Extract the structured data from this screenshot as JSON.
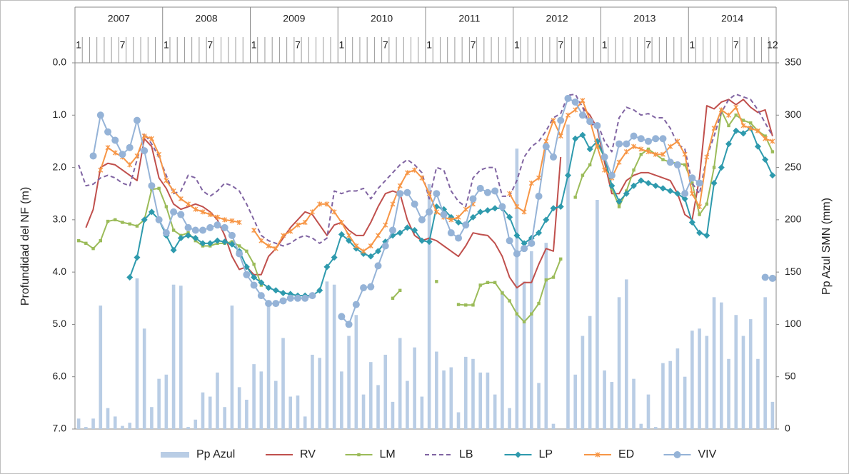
{
  "chart_data": {
    "type": "line",
    "y_title": "Profundidad del NF (m)",
    "y2_title": "Pp Azul SMN (mm)",
    "year_labels": [
      "2007",
      "2008",
      "2009",
      "2010",
      "2011",
      "2012",
      "2013",
      "2014"
    ],
    "categories": [
      "1",
      null,
      null,
      null,
      null,
      null,
      "7",
      null,
      null,
      null,
      null,
      null,
      "1",
      null,
      null,
      null,
      null,
      null,
      "7",
      null,
      null,
      null,
      null,
      null,
      "1",
      null,
      null,
      null,
      null,
      null,
      "7",
      null,
      null,
      null,
      null,
      null,
      "1",
      null,
      null,
      null,
      null,
      null,
      "7",
      null,
      null,
      null,
      null,
      null,
      "1",
      null,
      null,
      null,
      null,
      null,
      "7",
      null,
      null,
      null,
      null,
      null,
      "1",
      null,
      null,
      null,
      null,
      null,
      "7",
      null,
      null,
      null,
      null,
      null,
      "1",
      null,
      null,
      null,
      null,
      null,
      "7",
      null,
      null,
      null,
      null,
      null,
      "1",
      null,
      null,
      null,
      null,
      null,
      "7",
      null,
      null,
      null,
      null,
      "12"
    ],
    "ylim": [
      0,
      7
    ],
    "y_inverted": true,
    "yticks": [
      {
        "value": 0,
        "label": "0.0"
      },
      {
        "value": 1,
        "label": "1.0"
      },
      {
        "value": 2,
        "label": "2.0"
      },
      {
        "value": 3,
        "label": "3.0"
      },
      {
        "value": 4,
        "label": "4.0"
      },
      {
        "value": 5,
        "label": "5.0"
      },
      {
        "value": 6,
        "label": "6.0"
      },
      {
        "value": 7,
        "label": "7.0"
      }
    ],
    "y2lim": [
      0,
      350
    ],
    "y2ticks": [
      0,
      50,
      100,
      150,
      200,
      250,
      300,
      350
    ],
    "grid": false,
    "legend": "bottom",
    "series": [
      {
        "name": "Pp Azul",
        "type": "bar",
        "axis": "y2",
        "color": "#b9cde5",
        "values": [
          10,
          2,
          10,
          118,
          20,
          12,
          3,
          6,
          144,
          96,
          21,
          48,
          52,
          138,
          137,
          2,
          9,
          35,
          31,
          54,
          21,
          118,
          40,
          28,
          62,
          55,
          123,
          46,
          87,
          31,
          32,
          12,
          71,
          68,
          141,
          138,
          55,
          89,
          109,
          33,
          64,
          42,
          71,
          26,
          87,
          46,
          78,
          31,
          234,
          74,
          56,
          59,
          16,
          69,
          67,
          54,
          54,
          33,
          132,
          20,
          268,
          141,
          170,
          44,
          178,
          5,
          0,
          291,
          52,
          89,
          108,
          219,
          56,
          45,
          126,
          143,
          48,
          5,
          33,
          2,
          63,
          65,
          77,
          50,
          94,
          96,
          89,
          126,
          121,
          67,
          109,
          89,
          105,
          67,
          126,
          26
        ]
      },
      {
        "name": "RV",
        "type": "line",
        "color": "#c0504d",
        "values": [
          null,
          3.15,
          2.8,
          2.0,
          1.92,
          1.95,
          2.05,
          2.15,
          2.25,
          1.45,
          1.6,
          2.2,
          2.4,
          2.7,
          2.8,
          2.75,
          2.7,
          2.75,
          2.85,
          3.0,
          3.3,
          3.7,
          3.95,
          3.9,
          4.05,
          4.05,
          3.7,
          3.55,
          3.35,
          3.15,
          3.0,
          2.85,
          2.9,
          3.1,
          3.3,
          3.1,
          3.05,
          3.2,
          3.3,
          3.3,
          3.05,
          2.75,
          2.5,
          2.45,
          2.5,
          3.0,
          3.3,
          3.4,
          3.35,
          3.4,
          3.5,
          3.6,
          3.7,
          3.5,
          3.25,
          3.28,
          3.3,
          3.45,
          3.7,
          4.1,
          4.3,
          4.2,
          4.2,
          3.85,
          3.55,
          3.6,
          1.8,
          null,
          null,
          0.85,
          1.0,
          1.25,
          1.9,
          2.5,
          2.5,
          2.25,
          2.15,
          2.1,
          2.1,
          2.15,
          2.2,
          2.25,
          2.5,
          2.9,
          3.0,
          2.2,
          0.82,
          0.88,
          0.75,
          0.7,
          0.8,
          0.7,
          0.85,
          0.95,
          0.9,
          1.4
        ]
      },
      {
        "name": "LM",
        "type": "line",
        "marker": "square",
        "color": "#9bbb59",
        "values": [
          3.4,
          3.45,
          3.55,
          3.4,
          3.03,
          3.0,
          3.05,
          3.08,
          3.12,
          3.0,
          2.42,
          2.4,
          2.75,
          3.2,
          3.3,
          3.25,
          3.4,
          3.5,
          3.5,
          3.45,
          3.45,
          3.42,
          3.5,
          3.6,
          3.85,
          4.25,
          null,
          null,
          null,
          null,
          null,
          null,
          null,
          null,
          null,
          null,
          null,
          null,
          null,
          null,
          null,
          null,
          null,
          4.5,
          4.35,
          null,
          null,
          null,
          null,
          4.18,
          null,
          null,
          4.62,
          4.63,
          4.63,
          4.25,
          4.2,
          4.2,
          4.4,
          4.55,
          4.8,
          4.95,
          4.8,
          4.6,
          4.15,
          4.1,
          3.75,
          null,
          2.57,
          2.15,
          1.95,
          1.55,
          1.8,
          2.4,
          2.75,
          2.45,
          2.05,
          1.75,
          1.65,
          1.75,
          1.85,
          1.9,
          1.92,
          1.95,
          2.3,
          2.9,
          2.7,
          2.0,
          0.92,
          1.2,
          1.0,
          1.1,
          1.15,
          1.3,
          1.4,
          1.7
        ]
      },
      {
        "name": "LB",
        "type": "line",
        "dashed": true,
        "color": "#8064a2",
        "values": [
          1.95,
          2.35,
          2.32,
          2.2,
          2.15,
          2.2,
          2.3,
          2.35,
          1.85,
          1.35,
          1.55,
          1.8,
          2.15,
          2.5,
          2.45,
          2.15,
          2.2,
          2.45,
          2.55,
          2.45,
          2.3,
          2.35,
          2.45,
          2.7,
          3.0,
          3.3,
          3.4,
          3.45,
          3.5,
          3.45,
          3.35,
          3.3,
          3.35,
          3.45,
          3.35,
          2.45,
          2.5,
          2.45,
          2.45,
          2.4,
          2.6,
          2.4,
          2.25,
          2.1,
          1.95,
          1.85,
          1.95,
          2.1,
          2.6,
          2.0,
          2.05,
          2.45,
          2.65,
          2.75,
          2.2,
          2.05,
          2.0,
          2.0,
          2.55,
          2.55,
          2.25,
          1.8,
          1.6,
          1.5,
          1.3,
          1.05,
          0.97,
          0.62,
          0.6,
          0.85,
          1.2,
          1.15,
          1.5,
          1.7,
          1.05,
          0.85,
          0.9,
          1.0,
          0.97,
          1.05,
          1.05,
          1.25,
          1.55,
          1.65,
          2.3,
          2.5,
          1.8,
          1.4,
          0.95,
          0.7,
          0.6,
          0.65,
          0.7,
          0.9,
          1.15,
          1.4
        ]
      },
      {
        "name": "LP",
        "type": "line",
        "marker": "diamond",
        "color": "#2e9aad",
        "values": [
          null,
          null,
          null,
          null,
          null,
          null,
          null,
          4.1,
          3.72,
          3.0,
          2.85,
          3.0,
          3.3,
          3.58,
          3.35,
          3.3,
          3.35,
          3.45,
          3.45,
          3.4,
          3.42,
          3.47,
          3.6,
          3.9,
          4.1,
          4.2,
          4.3,
          4.35,
          4.4,
          4.42,
          4.45,
          4.45,
          4.45,
          4.35,
          3.9,
          3.72,
          3.28,
          3.4,
          3.55,
          3.65,
          3.7,
          3.6,
          3.42,
          3.3,
          3.25,
          3.15,
          3.2,
          3.4,
          3.42,
          2.75,
          2.8,
          2.95,
          3.05,
          3.1,
          2.95,
          2.85,
          2.82,
          2.78,
          2.78,
          2.95,
          3.3,
          3.45,
          3.35,
          3.25,
          3.0,
          2.78,
          2.75,
          2.15,
          1.45,
          1.38,
          1.65,
          1.5,
          1.8,
          2.35,
          2.65,
          2.5,
          2.35,
          2.25,
          2.3,
          2.35,
          2.4,
          2.45,
          2.5,
          2.6,
          3.05,
          3.25,
          3.3,
          2.3,
          2.0,
          1.55,
          1.3,
          1.35,
          1.25,
          1.6,
          1.85,
          2.15
        ]
      },
      {
        "name": "ED",
        "type": "line",
        "marker": "cross",
        "color": "#f79646",
        "values": [
          null,
          null,
          null,
          2.05,
          1.62,
          1.72,
          1.8,
          1.95,
          1.78,
          1.4,
          1.45,
          1.75,
          2.25,
          2.45,
          2.6,
          2.7,
          2.8,
          2.85,
          2.9,
          2.95,
          3.0,
          3.02,
          3.05,
          null,
          3.2,
          3.4,
          3.5,
          3.55,
          3.3,
          3.22,
          3.1,
          3.05,
          2.85,
          2.7,
          2.7,
          2.85,
          3.05,
          3.3,
          3.5,
          3.6,
          3.5,
          3.3,
          3.1,
          2.7,
          2.35,
          2.1,
          2.05,
          2.2,
          2.5,
          2.85,
          2.95,
          3.0,
          2.95,
          2.8,
          2.7,
          null,
          null,
          null,
          null,
          2.5,
          2.75,
          2.85,
          2.3,
          2.2,
          1.5,
          1.1,
          1.4,
          1.0,
          0.9,
          0.72,
          1.1,
          1.6,
          2.05,
          2.2,
          1.9,
          1.7,
          1.6,
          1.65,
          1.7,
          1.75,
          1.75,
          1.6,
          1.5,
          1.75,
          2.5,
          2.75,
          1.8,
          1.25,
          0.9,
          1.0,
          0.85,
          1.2,
          1.25,
          1.3,
          1.45,
          1.5
        ]
      },
      {
        "name": "VIV",
        "type": "line",
        "marker": "circle",
        "color": "#95b3d7",
        "values": [
          null,
          null,
          1.78,
          1.0,
          1.32,
          1.48,
          1.75,
          1.62,
          1.1,
          1.68,
          2.35,
          3.0,
          3.25,
          2.85,
          2.9,
          3.15,
          3.2,
          3.2,
          3.15,
          3.1,
          3.15,
          3.3,
          3.65,
          4.05,
          4.25,
          4.45,
          4.6,
          4.6,
          4.55,
          4.5,
          4.5,
          4.5,
          4.45,
          null,
          null,
          null,
          4.85,
          5.0,
          4.62,
          4.3,
          4.28,
          3.88,
          3.5,
          3.2,
          2.5,
          2.48,
          2.7,
          3.0,
          2.85,
          2.5,
          2.9,
          3.25,
          3.35,
          3.1,
          2.6,
          2.4,
          2.48,
          2.45,
          2.75,
          3.4,
          3.65,
          3.55,
          3.45,
          2.55,
          1.6,
          1.8,
          1.1,
          0.68,
          0.75,
          1.0,
          1.12,
          1.2,
          1.8,
          2.15,
          1.55,
          1.55,
          1.4,
          1.45,
          1.5,
          1.45,
          1.45,
          1.9,
          1.95,
          2.5,
          2.2,
          2.3,
          null,
          null,
          null,
          null,
          null,
          null,
          null,
          null,
          4.1,
          4.12
        ]
      }
    ]
  }
}
